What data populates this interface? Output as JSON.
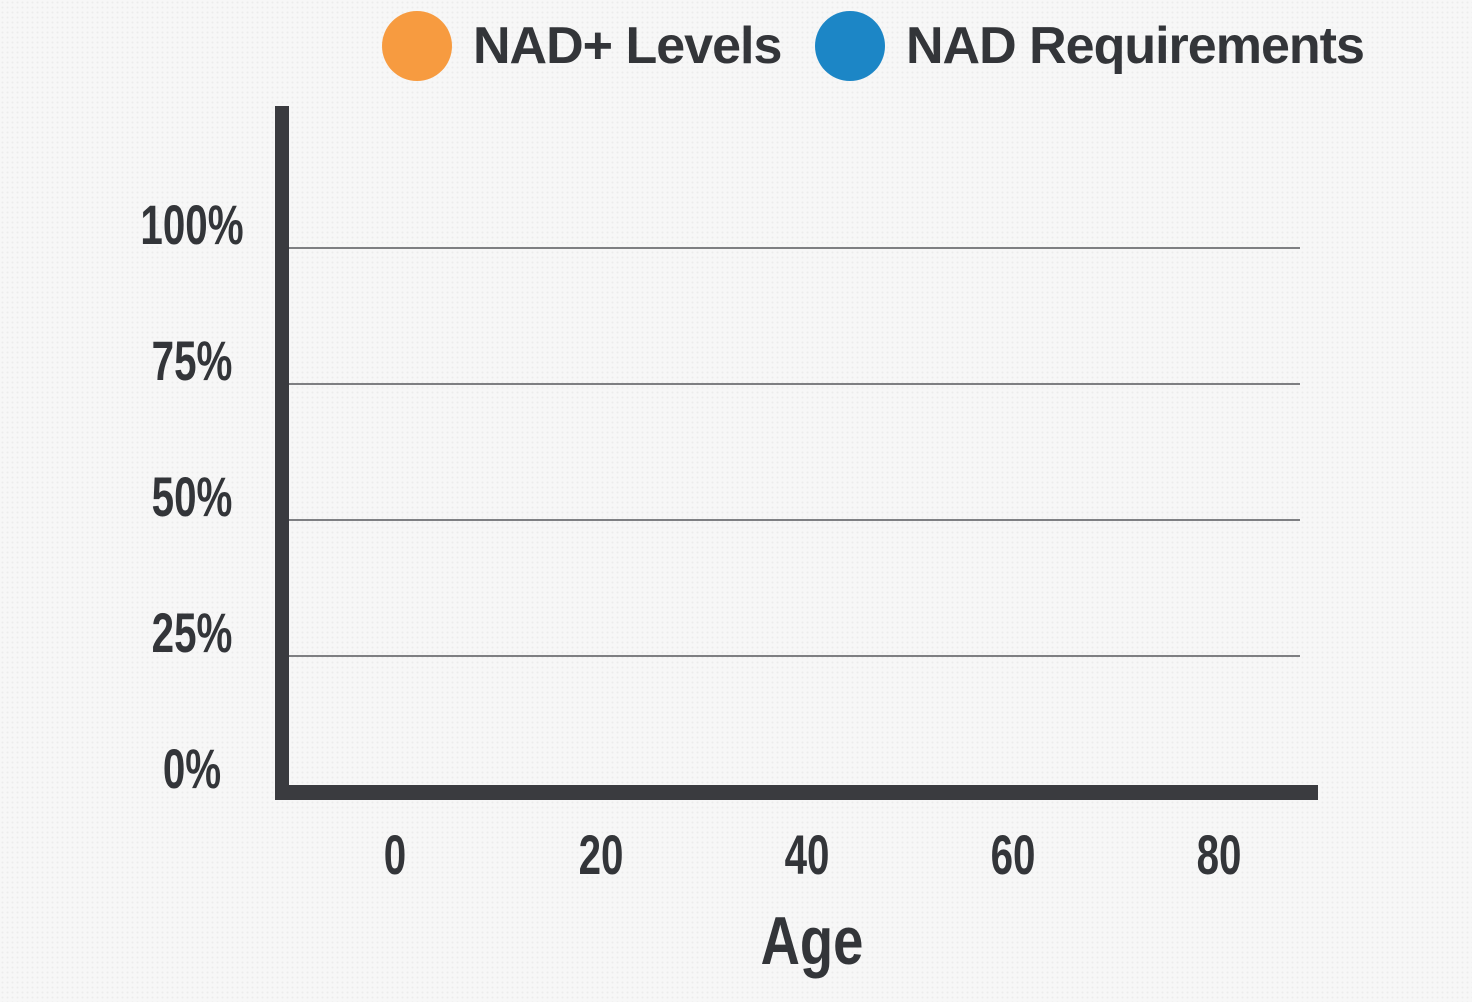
{
  "colors": {
    "background": "#F7F7F7",
    "axis": "#3A3B3F",
    "gridline": "#7E7F82",
    "text": "#333539",
    "nad_levels_orange": "#F79B40",
    "nad_requirements_blue": "#1C86C6"
  },
  "legend": {
    "items": [
      {
        "label": "NAD+ Levels",
        "color": "#F79B40",
        "swatch": "circle"
      },
      {
        "label": "NAD Requirements",
        "color": "#1C86C6",
        "swatch": "circle"
      }
    ]
  },
  "chart_data": {
    "type": "line",
    "title": "",
    "xlabel": "Age",
    "ylabel": "",
    "x_ticks": [
      0,
      20,
      40,
      60,
      80
    ],
    "x_tick_labels": [
      "0",
      "20",
      "40",
      "60",
      "80"
    ],
    "y_ticks_percent": [
      0,
      25,
      50,
      75,
      100
    ],
    "y_tick_labels": [
      "0%",
      "25%",
      "50%",
      "75%",
      "100%"
    ],
    "xlim": [
      -12,
      90
    ],
    "ylim_percent": [
      0,
      126
    ],
    "grid": "horizontal",
    "legend_position": "top",
    "plot_area_empty": true,
    "series": [
      {
        "name": "NAD+ Levels",
        "color": "#F79B40",
        "x": [],
        "values": []
      },
      {
        "name": "NAD Requirements",
        "color": "#1C86C6",
        "x": [],
        "values": []
      }
    ]
  }
}
